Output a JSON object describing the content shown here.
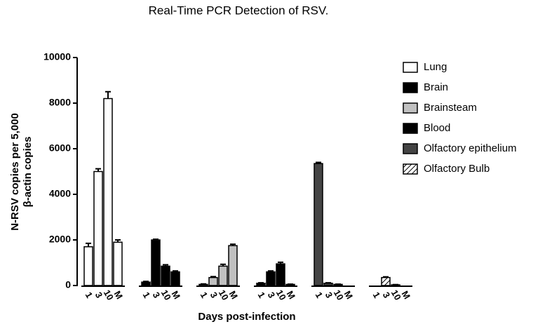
{
  "chart_data": {
    "type": "bar",
    "title": "Real-Time PCR Detection of RSV.",
    "xlabel": "Days post-infection",
    "ylabel": [
      "N-RSV copies per 5,000",
      "β-actin copies"
    ],
    "categories": [
      "1",
      "3",
      "10",
      "M"
    ],
    "series": [
      {
        "name": "Lung",
        "color": "#ffffff",
        "values": [
          1700,
          5000,
          8200,
          1900
        ],
        "errors": [
          150,
          120,
          300,
          100
        ]
      },
      {
        "name": "Brain",
        "color": "#000000",
        "values": [
          150,
          2000,
          850,
          600
        ],
        "errors": [
          30,
          30,
          60,
          40
        ]
      },
      {
        "name": "Brainsteam",
        "color": "#c0c0c0",
        "values": [
          50,
          350,
          850,
          1750
        ],
        "errors": [
          20,
          40,
          80,
          60
        ]
      },
      {
        "name": "Blood",
        "color": "#000000",
        "values": [
          100,
          600,
          950,
          50
        ],
        "errors": [
          20,
          40,
          70,
          10
        ]
      },
      {
        "name": "Olfactory epithelium",
        "color": "#444444",
        "values": [
          5350,
          100,
          50,
          0
        ],
        "errors": [
          50,
          20,
          10,
          0
        ]
      },
      {
        "name": "Olfactory Bulb",
        "color": "#ffffff",
        "hatch": true,
        "values": [
          0,
          350,
          30,
          0
        ],
        "errors": [
          0,
          30,
          10,
          0
        ]
      }
    ],
    "ylim": [
      0,
      10000
    ],
    "yticks": [
      0,
      2000,
      4000,
      6000,
      8000,
      10000
    ],
    "legend": "right"
  }
}
